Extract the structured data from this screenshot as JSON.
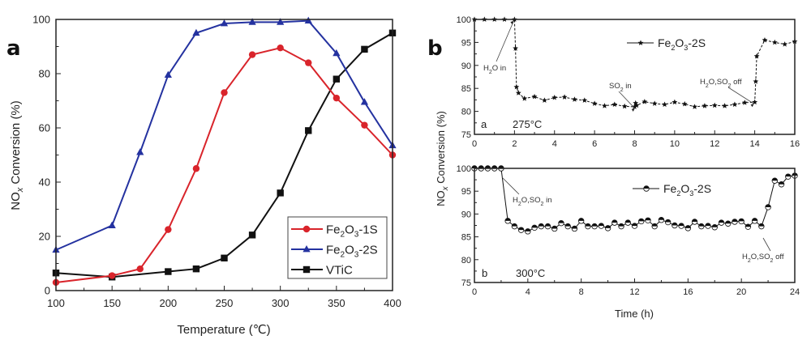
{
  "chart_data": [
    {
      "id": "panel-a",
      "panel_label": "a",
      "type": "line",
      "title": "",
      "xlabel": "Temperature (℃)",
      "ylabel_main": "NO",
      "ylabel_sub": "x",
      "ylabel_rest": " Conversion (%)",
      "xlim": [
        100,
        400
      ],
      "ylim": [
        0,
        100
      ],
      "xticks": [
        100,
        150,
        200,
        250,
        300,
        350,
        400
      ],
      "yticks": [
        0,
        20,
        40,
        60,
        80,
        100
      ],
      "grid": false,
      "legend_position": "bottom-right",
      "x": [
        100,
        150,
        175,
        200,
        225,
        250,
        275,
        300,
        325,
        350,
        375,
        400
      ],
      "series": [
        {
          "name": "Fe2O3-1S",
          "label_parts": [
            "Fe",
            "2",
            "O",
            "3",
            "-1S"
          ],
          "color": "#d9242b",
          "marker": "circle",
          "values": [
            3,
            5.5,
            8,
            22.5,
            45,
            73,
            87,
            89.5,
            84,
            71,
            61,
            50
          ]
        },
        {
          "name": "Fe2O3-2S",
          "label_parts": [
            "Fe",
            "2",
            "O",
            "3",
            "-2S"
          ],
          "color": "#2432a0",
          "marker": "triangle",
          "values": [
            15,
            24,
            51,
            79.5,
            95,
            98.5,
            99,
            99,
            99.5,
            87.5,
            69.5,
            53.5
          ]
        },
        {
          "name": "VTiC",
          "label_parts": [
            "VTiC",
            "",
            "",
            "",
            ""
          ],
          "color": "#111111",
          "marker": "square",
          "values": [
            6.5,
            5,
            null,
            7,
            8,
            12,
            20.5,
            36,
            59,
            78,
            89,
            95
          ]
        }
      ]
    },
    {
      "id": "panel-b-top",
      "panel_label": "b",
      "subpanel_label": "a",
      "condition": "275°C",
      "type": "line",
      "xlabel": "",
      "ylabel": "NOx Conversion (%)",
      "xlim": [
        0,
        16
      ],
      "ylim": [
        75,
        100
      ],
      "xticks": [
        0,
        2,
        4,
        6,
        8,
        10,
        12,
        14,
        16
      ],
      "yticks": [
        75,
        80,
        85,
        90,
        95,
        100
      ],
      "grid": false,
      "legend_position": "top-center",
      "series": [
        {
          "name": "Fe2O3-2S",
          "label_parts": [
            "Fe",
            "2",
            "O",
            "3",
            "-2S"
          ],
          "color": "#111111",
          "marker": "star",
          "line": "dashed",
          "x": [
            0,
            0.5,
            1,
            1.5,
            2,
            2.05,
            2.1,
            2.2,
            2.5,
            3,
            3.5,
            4,
            4.5,
            5,
            5.5,
            6,
            6.5,
            7,
            7.5,
            8,
            8.05,
            8.1,
            8.5,
            9,
            9.5,
            10,
            10.5,
            11,
            11.5,
            12,
            12.5,
            13,
            13.5,
            14,
            14.05,
            14.1,
            14.5,
            15,
            15.5,
            16
          ],
          "values": [
            100,
            100,
            100,
            100,
            100,
            93.7,
            85.3,
            84,
            82.8,
            83.2,
            82.4,
            83,
            83.1,
            82.6,
            82.4,
            81.7,
            81.2,
            81.5,
            81.1,
            81,
            81.8,
            81.3,
            82.1,
            81.7,
            81.5,
            82,
            81.6,
            81,
            81.2,
            81.3,
            81.2,
            81.5,
            81.9,
            82,
            86.5,
            92,
            95.5,
            95,
            94.6,
            95.2
          ]
        }
      ],
      "annotations": [
        {
          "parts": [
            "H",
            "2",
            "O in",
            "",
            ""
          ],
          "target": [
            2,
            100
          ]
        },
        {
          "parts": [
            "SO",
            "2",
            " in",
            "",
            ""
          ],
          "target": [
            8.05,
            81
          ]
        },
        {
          "parts": [
            "H",
            "2",
            "O,SO",
            "2",
            " off"
          ],
          "target": [
            14,
            82
          ]
        }
      ]
    },
    {
      "id": "panel-b-bottom",
      "subpanel_label": "b",
      "condition": "300°C",
      "type": "line",
      "xlabel": "Time (h)",
      "ylabel": "NOx Conversion (%)",
      "xlim": [
        0,
        24
      ],
      "ylim": [
        75,
        100
      ],
      "xticks": [
        0,
        4,
        8,
        12,
        16,
        20,
        24
      ],
      "yticks": [
        75,
        80,
        85,
        90,
        95,
        100
      ],
      "grid": false,
      "legend_position": "top-center",
      "series": [
        {
          "name": "Fe2O3-2S",
          "label_parts": [
            "Fe",
            "2",
            "O",
            "3",
            "-2S"
          ],
          "color": "#111111",
          "marker": "half-circle",
          "line": "solid",
          "x": [
            0,
            0.5,
            1,
            1.5,
            2,
            2.5,
            3,
            3.5,
            4,
            4.5,
            5,
            5.5,
            6,
            6.5,
            7,
            7.5,
            8,
            8.5,
            9,
            9.5,
            10,
            10.5,
            11,
            11.5,
            12,
            12.5,
            13,
            13.5,
            14,
            14.5,
            15,
            15.5,
            16,
            16.5,
            17,
            17.5,
            18,
            18.5,
            19,
            19.5,
            20,
            20.5,
            21,
            21.5,
            22,
            22.5,
            23,
            23.5,
            24
          ],
          "values": [
            100,
            100,
            100,
            100,
            100,
            88.5,
            87.3,
            86.5,
            86.2,
            87,
            87.3,
            87.3,
            86.8,
            88,
            87.3,
            86.8,
            88.5,
            87.3,
            87.3,
            87.4,
            86.9,
            88.1,
            87.3,
            88.1,
            87.4,
            88.4,
            88.6,
            87.3,
            88.7,
            88.2,
            87.5,
            87.4,
            86.9,
            88.3,
            87.3,
            87.4,
            87.1,
            88.1,
            87.9,
            88.3,
            88.4,
            87.2,
            88.5,
            87.3,
            91.5,
            97.3,
            96.5,
            98.2,
            98.4
          ]
        }
      ],
      "annotations": [
        {
          "parts": [
            "H",
            "2",
            "O,SO",
            "2",
            " in"
          ],
          "target": [
            2,
            100
          ]
        },
        {
          "parts": [
            "H",
            "2",
            "O,SO",
            "2",
            " off"
          ],
          "target": [
            21.5,
            86.8
          ]
        }
      ]
    }
  ]
}
